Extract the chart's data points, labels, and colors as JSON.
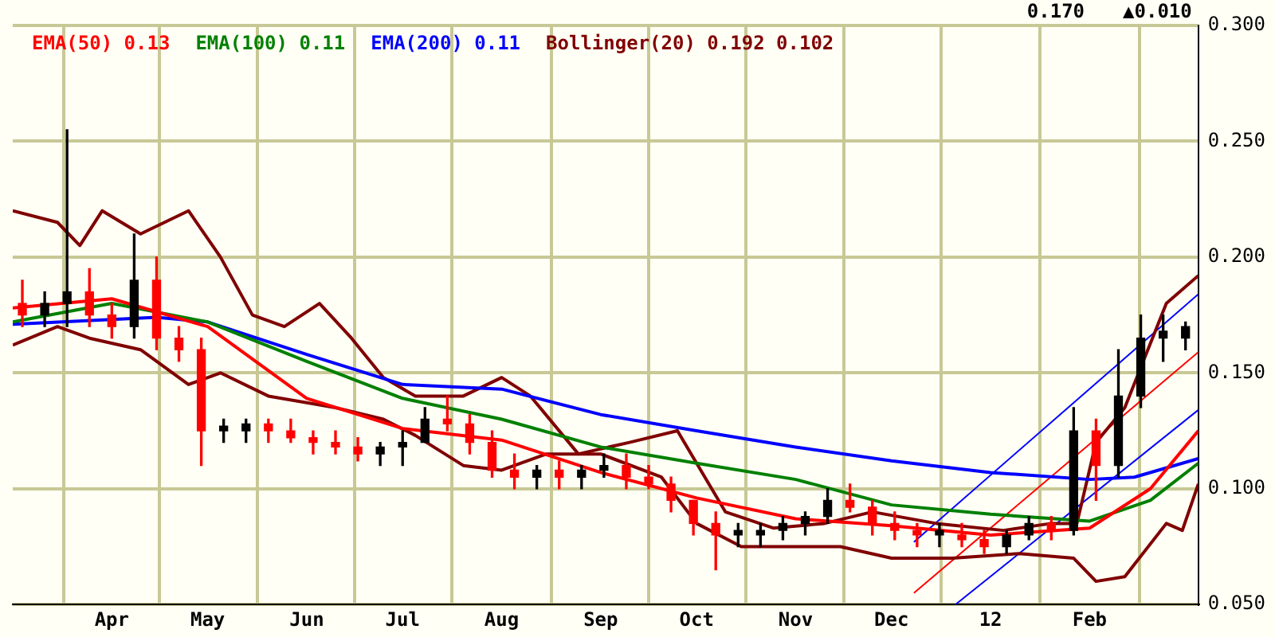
{
  "chart_data": {
    "type": "candlestick",
    "annotations": [
      "0.170",
      "▲0.010"
    ],
    "legend": "top left",
    "grid": true,
    "xlim": [
      "2011-03-01",
      "2012-03-06"
    ],
    "xticks": [
      {
        "value": "2011-04-01",
        "label": "Apr"
      },
      {
        "value": "2011-05-01",
        "label": "May"
      },
      {
        "value": "2011-06-01",
        "label": "Jun"
      },
      {
        "value": "2011-07-01",
        "label": "Jul"
      },
      {
        "value": "2011-08-01",
        "label": "Aug"
      },
      {
        "value": "2011-09-01",
        "label": "Sep"
      },
      {
        "value": "2011-10-01",
        "label": "Oct"
      },
      {
        "value": "2011-11-01",
        "label": "Nov"
      },
      {
        "value": "2011-12-01",
        "label": "Dec"
      },
      {
        "value": "2012-01-01",
        "label": "12"
      },
      {
        "value": "2012-02-01",
        "label": "Feb"
      }
    ],
    "ylim": [
      0.05,
      0.3
    ],
    "yticks": [
      {
        "value": 0.05,
        "label": "0.050"
      },
      {
        "value": 0.1,
        "label": "0.100"
      },
      {
        "value": 0.15,
        "label": "0.150"
      },
      {
        "value": 0.2,
        "label": "0.200"
      },
      {
        "value": 0.25,
        "label": "0.250"
      },
      {
        "value": 0.3,
        "label": "0.300"
      }
    ],
    "x": [
      "2011-03-04",
      "2011-03-11",
      "2011-03-18",
      "2011-03-25",
      "2011-04-01",
      "2011-04-08",
      "2011-04-15",
      "2011-04-22",
      "2011-04-29",
      "2011-05-06",
      "2011-05-13",
      "2011-05-20",
      "2011-05-27",
      "2011-06-03",
      "2011-06-10",
      "2011-06-17",
      "2011-06-24",
      "2011-07-01",
      "2011-07-08",
      "2011-07-15",
      "2011-07-22",
      "2011-07-29",
      "2011-08-05",
      "2011-08-12",
      "2011-08-19",
      "2011-08-26",
      "2011-09-02",
      "2011-09-09",
      "2011-09-16",
      "2011-09-23",
      "2011-09-30",
      "2011-10-07",
      "2011-10-14",
      "2011-10-21",
      "2011-10-28",
      "2011-11-04",
      "2011-11-11",
      "2011-11-18",
      "2011-11-25",
      "2011-12-02",
      "2011-12-09",
      "2011-12-16",
      "2011-12-23",
      "2011-12-30",
      "2012-01-06",
      "2012-01-13",
      "2012-01-20",
      "2012-01-27",
      "2012-02-03",
      "2012-02-10",
      "2012-02-17",
      "2012-02-24",
      "2012-03-02"
    ],
    "ohlc": [
      [
        0.18,
        0.19,
        0.17,
        0.175
      ],
      [
        0.175,
        0.185,
        0.17,
        0.18
      ],
      [
        0.18,
        0.255,
        0.17,
        0.185
      ],
      [
        0.185,
        0.195,
        0.17,
        0.175
      ],
      [
        0.175,
        0.18,
        0.165,
        0.17
      ],
      [
        0.17,
        0.21,
        0.165,
        0.19
      ],
      [
        0.19,
        0.2,
        0.16,
        0.165
      ],
      [
        0.165,
        0.17,
        0.155,
        0.16
      ],
      [
        0.16,
        0.165,
        0.11,
        0.125
      ],
      [
        0.125,
        0.13,
        0.12,
        0.127
      ],
      [
        0.125,
        0.13,
        0.12,
        0.128
      ],
      [
        0.128,
        0.13,
        0.12,
        0.125
      ],
      [
        0.125,
        0.13,
        0.12,
        0.122
      ],
      [
        0.122,
        0.125,
        0.115,
        0.12
      ],
      [
        0.12,
        0.125,
        0.115,
        0.118
      ],
      [
        0.118,
        0.122,
        0.112,
        0.115
      ],
      [
        0.115,
        0.12,
        0.11,
        0.118
      ],
      [
        0.118,
        0.125,
        0.11,
        0.12
      ],
      [
        0.12,
        0.135,
        0.12,
        0.13
      ],
      [
        0.13,
        0.14,
        0.125,
        0.128
      ],
      [
        0.128,
        0.132,
        0.115,
        0.12
      ],
      [
        0.12,
        0.125,
        0.105,
        0.108
      ],
      [
        0.108,
        0.115,
        0.1,
        0.105
      ],
      [
        0.105,
        0.11,
        0.1,
        0.108
      ],
      [
        0.108,
        0.112,
        0.1,
        0.105
      ],
      [
        0.105,
        0.11,
        0.1,
        0.108
      ],
      [
        0.108,
        0.115,
        0.105,
        0.11
      ],
      [
        0.11,
        0.115,
        0.1,
        0.105
      ],
      [
        0.105,
        0.11,
        0.1,
        0.102
      ],
      [
        0.102,
        0.105,
        0.09,
        0.095
      ],
      [
        0.095,
        0.095,
        0.08,
        0.085
      ],
      [
        0.085,
        0.09,
        0.065,
        0.08
      ],
      [
        0.08,
        0.085,
        0.075,
        0.082
      ],
      [
        0.08,
        0.085,
        0.075,
        0.082
      ],
      [
        0.082,
        0.088,
        0.078,
        0.085
      ],
      [
        0.085,
        0.09,
        0.08,
        0.088
      ],
      [
        0.088,
        0.1,
        0.085,
        0.095
      ],
      [
        0.095,
        0.102,
        0.09,
        0.092
      ],
      [
        0.092,
        0.095,
        0.08,
        0.085
      ],
      [
        0.085,
        0.09,
        0.078,
        0.082
      ],
      [
        0.082,
        0.085,
        0.075,
        0.08
      ],
      [
        0.08,
        0.085,
        0.075,
        0.082
      ],
      [
        0.08,
        0.085,
        0.075,
        0.078
      ],
      [
        0.078,
        0.082,
        0.072,
        0.075
      ],
      [
        0.075,
        0.082,
        0.072,
        0.08
      ],
      [
        0.08,
        0.088,
        0.078,
        0.085
      ],
      [
        0.085,
        0.088,
        0.078,
        0.082
      ],
      [
        0.082,
        0.135,
        0.08,
        0.125
      ],
      [
        0.125,
        0.13,
        0.095,
        0.11
      ],
      [
        0.11,
        0.16,
        0.105,
        0.14
      ],
      [
        0.14,
        0.175,
        0.135,
        0.165
      ],
      [
        0.165,
        0.175,
        0.155,
        0.168
      ],
      [
        0.165,
        0.172,
        0.16,
        0.17
      ]
    ],
    "colors": [
      "#ff0000",
      "#000000",
      "#000000",
      "#ff0000",
      "#ff0000",
      "#000000",
      "#ff0000",
      "#ff0000",
      "#ff0000",
      "#000000",
      "#000000",
      "#ff0000",
      "#ff0000",
      "#ff0000",
      "#ff0000",
      "#ff0000",
      "#000000",
      "#000000",
      "#000000",
      "#ff0000",
      "#ff0000",
      "#ff0000",
      "#ff0000",
      "#000000",
      "#ff0000",
      "#000000",
      "#000000",
      "#ff0000",
      "#ff0000",
      "#ff0000",
      "#ff0000",
      "#ff0000",
      "#000000",
      "#000000",
      "#000000",
      "#000000",
      "#000000",
      "#ff0000",
      "#ff0000",
      "#ff0000",
      "#ff0000",
      "#000000",
      "#ff0000",
      "#ff0000",
      "#000000",
      "#000000",
      "#ff0000",
      "#000000",
      "#ff0000",
      "#000000",
      "#000000",
      "#000000",
      "#000000"
    ],
    "series": [
      {
        "name": "EMA(50) 0.13",
        "color": "#ff0000",
        "type": "line",
        "x": [
          "2011-03-01",
          "2011-04-01",
          "2011-05-01",
          "2011-06-01",
          "2011-07-01",
          "2011-08-01",
          "2011-09-01",
          "2011-10-01",
          "2011-11-01",
          "2011-12-01",
          "2012-01-01",
          "2012-02-01",
          "2012-02-20",
          "2012-03-06"
        ],
        "values": [
          0.178,
          0.182,
          0.17,
          0.139,
          0.126,
          0.121,
          0.107,
          0.096,
          0.087,
          0.084,
          0.08,
          0.083,
          0.1,
          0.125
        ]
      },
      {
        "name": "EMA(100) 0.11",
        "color": "#008000",
        "type": "line",
        "x": [
          "2011-03-01",
          "2011-04-01",
          "2011-05-01",
          "2011-06-01",
          "2011-07-01",
          "2011-08-01",
          "2011-09-01",
          "2011-10-01",
          "2011-11-01",
          "2011-12-01",
          "2012-01-01",
          "2012-02-01",
          "2012-02-20",
          "2012-03-06"
        ],
        "values": [
          0.172,
          0.18,
          0.172,
          0.155,
          0.139,
          0.13,
          0.118,
          0.111,
          0.104,
          0.093,
          0.089,
          0.086,
          0.095,
          0.111
        ]
      },
      {
        "name": "EMA(200) 0.11",
        "color": "#0000ff",
        "type": "line",
        "x": [
          "2011-03-01",
          "2011-04-15",
          "2011-05-01",
          "2011-06-01",
          "2011-07-01",
          "2011-08-01",
          "2011-09-01",
          "2011-10-01",
          "2011-11-01",
          "2011-12-01",
          "2012-01-01",
          "2012-02-01",
          "2012-02-15",
          "2012-03-06"
        ],
        "values": [
          0.171,
          0.174,
          0.172,
          0.158,
          0.145,
          0.143,
          0.132,
          0.125,
          0.118,
          0.112,
          0.107,
          0.104,
          0.105,
          0.113
        ]
      },
      {
        "name": "Bollinger(20) 0.192 0.102",
        "color": "#800000",
        "type": "line",
        "x": [
          "2011-03-01",
          "2011-03-15",
          "2011-03-22",
          "2011-03-29",
          "2011-04-10",
          "2011-04-25",
          "2011-05-05",
          "2011-05-15",
          "2011-05-25",
          "2011-06-05",
          "2011-06-15",
          "2011-06-25",
          "2011-07-05",
          "2011-07-20",
          "2011-08-01",
          "2011-08-10",
          "2011-08-25",
          "2011-09-10",
          "2011-09-25",
          "2011-10-10",
          "2011-10-25",
          "2011-11-10",
          "2011-11-25",
          "2011-12-15",
          "2012-01-05",
          "2012-01-20",
          "2012-01-28",
          "2012-02-03",
          "2012-02-12",
          "2012-02-25",
          "2012-03-06"
        ],
        "values": [
          0.22,
          0.215,
          0.205,
          0.22,
          0.21,
          0.22,
          0.2,
          0.175,
          0.17,
          0.18,
          0.165,
          0.148,
          0.14,
          0.14,
          0.148,
          0.14,
          0.115,
          0.12,
          0.125,
          0.09,
          0.083,
          0.085,
          0.09,
          0.085,
          0.082,
          0.085,
          0.085,
          0.12,
          0.135,
          0.18,
          0.192
        ]
      },
      {
        "color": "#800000",
        "type": "line",
        "x": [
          "2011-03-01",
          "2011-03-15",
          "2011-03-25",
          "2011-04-10",
          "2011-04-25",
          "2011-05-05",
          "2011-05-20",
          "2011-06-10",
          "2011-06-25",
          "2011-07-05",
          "2011-07-20",
          "2011-08-01",
          "2011-08-15",
          "2011-09-01",
          "2011-09-20",
          "2011-10-01",
          "2011-10-15",
          "2011-11-01",
          "2011-11-15",
          "2011-12-01",
          "2011-12-20",
          "2012-01-10",
          "2012-01-27",
          "2012-02-03",
          "2012-02-12",
          "2012-02-25",
          "2012-03-01",
          "2012-03-06"
        ],
        "values": [
          0.162,
          0.17,
          0.165,
          0.16,
          0.145,
          0.15,
          0.14,
          0.135,
          0.13,
          0.123,
          0.11,
          0.108,
          0.115,
          0.115,
          0.105,
          0.085,
          0.075,
          0.075,
          0.075,
          0.07,
          0.07,
          0.072,
          0.07,
          0.06,
          0.062,
          0.085,
          0.082,
          0.102
        ]
      },
      {
        "color": "#0000ff",
        "type": "line",
        "x": [
          "2011-12-08",
          "2012-03-06"
        ],
        "values": [
          0.077,
          0.184
        ]
      },
      {
        "color": "#ff0000",
        "type": "line",
        "x": [
          "2011-12-08",
          "2012-03-06"
        ],
        "values": [
          0.055,
          0.159
        ]
      },
      {
        "color": "#0000ff",
        "type": "line",
        "x": [
          "2011-12-21",
          "2012-03-06"
        ],
        "values": [
          0.05,
          0.134
        ]
      }
    ]
  }
}
